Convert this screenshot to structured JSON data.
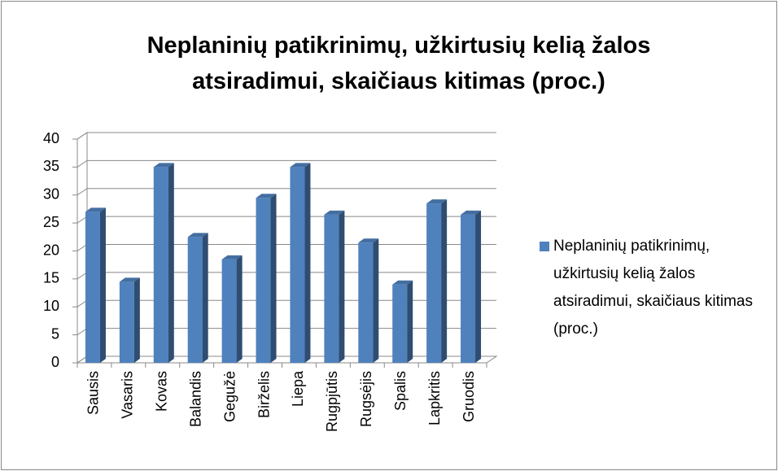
{
  "chart_data": {
    "type": "bar3d",
    "title": "Neplaninių patikrinimų, užkirtusių kelią žalos atsiradimui, skaičiaus kitimas (proc.)",
    "categories": [
      "Sausis",
      "Vasaris",
      "Kovas",
      "Balandis",
      "Gegužė",
      "Birželis",
      "Liepa",
      "Rugpjūtis",
      "Rugsėjis",
      "Spalis",
      "Lapkritis",
      "Gruodis"
    ],
    "series": [
      {
        "name": "Neplaninių patikrinimų, užkirtusių kelią žalos atsiradimui, skaičiaus kitimas (proc.)",
        "color": "#4f81bd",
        "values": [
          27,
          14.5,
          35,
          22.5,
          18.5,
          29.5,
          35,
          26.5,
          21.5,
          14,
          28.5,
          26.5
        ]
      }
    ],
    "ylim": [
      0,
      40
    ],
    "yticks": [
      0,
      5,
      10,
      15,
      20,
      25,
      30,
      35,
      40
    ],
    "grid": true,
    "legend": "right"
  }
}
